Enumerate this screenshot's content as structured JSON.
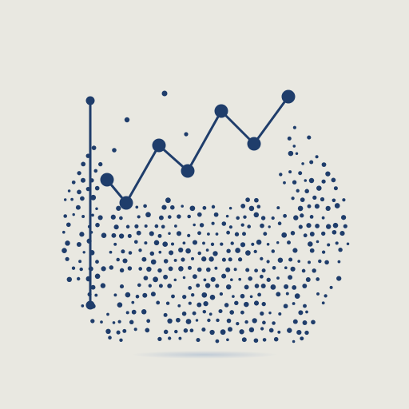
{
  "colors": {
    "background": "#e9e8e1",
    "ink": "#1f3d6b",
    "shadow": "#b9c6d8"
  },
  "icon": "line-chart-over-dot-sphere-illustration"
}
